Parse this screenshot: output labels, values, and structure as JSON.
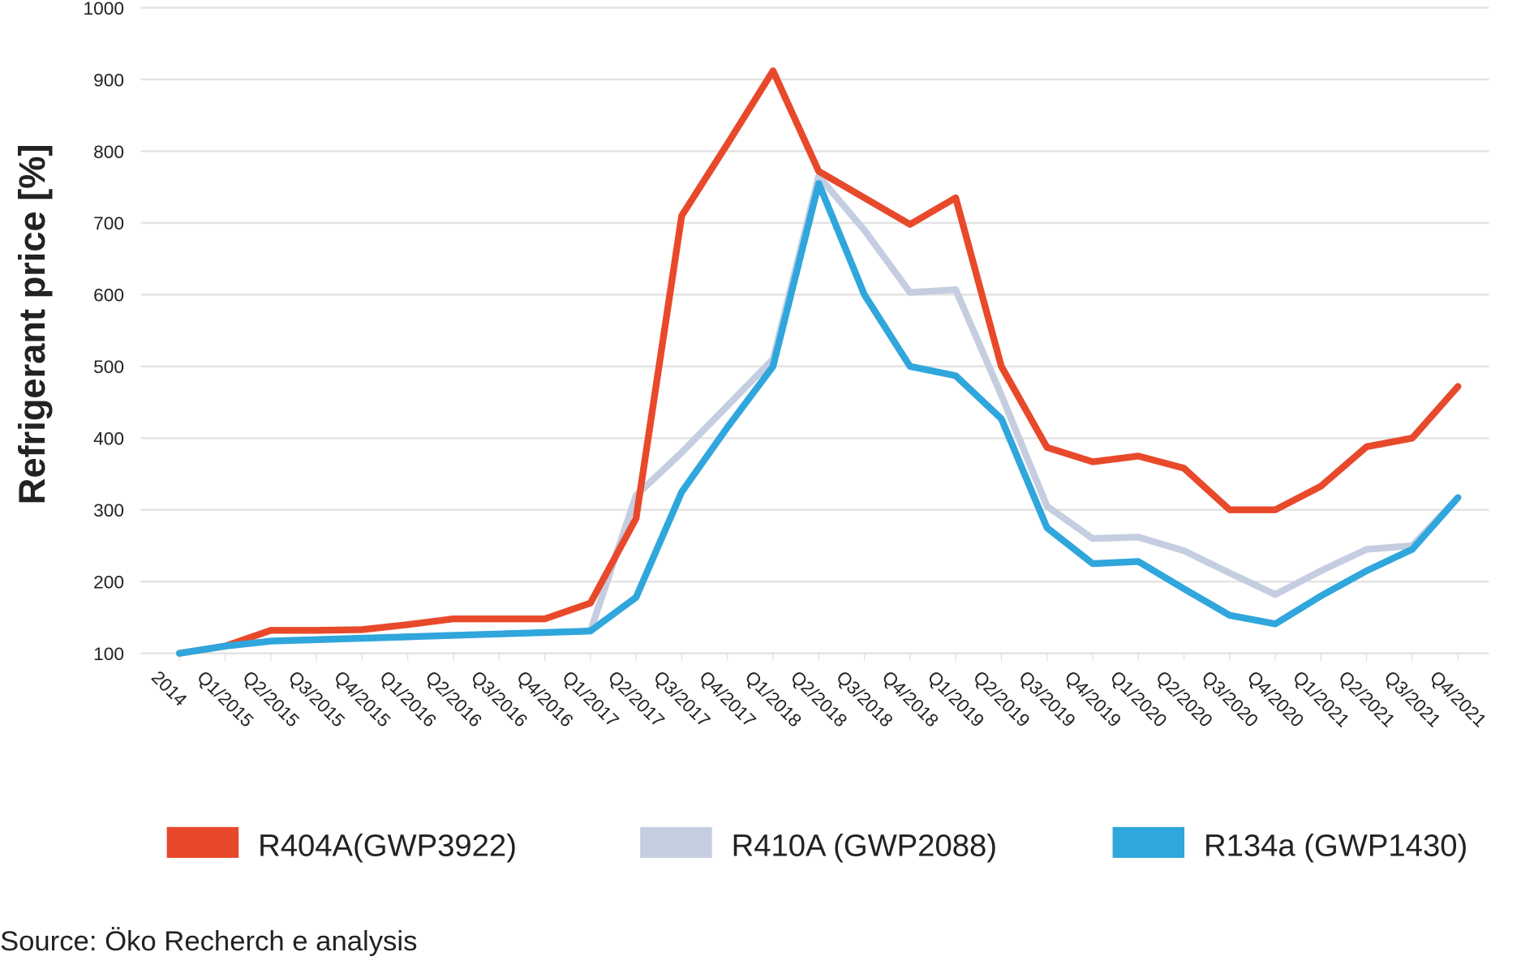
{
  "chart_data": {
    "type": "line",
    "title": "",
    "xlabel": "",
    "ylabel": "Refrigerant price [%]",
    "ylim": [
      100,
      1000
    ],
    "yticks": [
      100,
      200,
      300,
      400,
      500,
      600,
      700,
      800,
      900,
      1000
    ],
    "grid": true,
    "legend_position": "bottom",
    "categories": [
      "2014",
      "Q1/2015",
      "Q2/2015",
      "Q3/2015",
      "Q4/2015",
      "Q1/2016",
      "Q2/2016",
      "Q3/2016",
      "Q4/2016",
      "Q1/2017",
      "Q2/2017",
      "Q3/2017",
      "Q4/2017",
      "Q1/2018",
      "Q2/2018",
      "Q3/2018",
      "Q4/2018",
      "Q1/2019",
      "Q2/2019",
      "Q3/2019",
      "Q4/2019",
      "Q1/2020",
      "Q2/2020",
      "Q3/2020",
      "Q4/2020",
      "Q1/2021",
      "Q2/2021",
      "Q3/2021",
      "Q4/2021"
    ],
    "series": [
      {
        "name": "R410A (GWP2088)",
        "color": "#c5cde0",
        "values": [
          100,
          110,
          117,
          119,
          121,
          123,
          125,
          127,
          129,
          131,
          320,
          380,
          445,
          510,
          765,
          690,
          603,
          607,
          460,
          305,
          260,
          262,
          243,
          212,
          182,
          215,
          245,
          250,
          317
        ]
      },
      {
        "name": "R404A(GWP3922)",
        "color": "#e8492b",
        "values": [
          100,
          110,
          132,
          132,
          133,
          140,
          148,
          148,
          148,
          170,
          288,
          710,
          810,
          912,
          772,
          735,
          698,
          735,
          500,
          387,
          367,
          375,
          358,
          300,
          300,
          333,
          388,
          400,
          472
        ]
      },
      {
        "name": "R134a (GWP1430)",
        "color": "#2fa6dc",
        "values": [
          100,
          110,
          117,
          119,
          121,
          123,
          125,
          127,
          129,
          131,
          178,
          325,
          415,
          500,
          755,
          600,
          500,
          487,
          427,
          275,
          225,
          228,
          190,
          153,
          141,
          180,
          215,
          245,
          317
        ]
      }
    ],
    "legend_order": [
      "R404A(GWP3922)",
      "R410A (GWP2088)",
      "R134a (GWP1430)"
    ]
  },
  "source": "Source: Öko Recherch e analysis"
}
